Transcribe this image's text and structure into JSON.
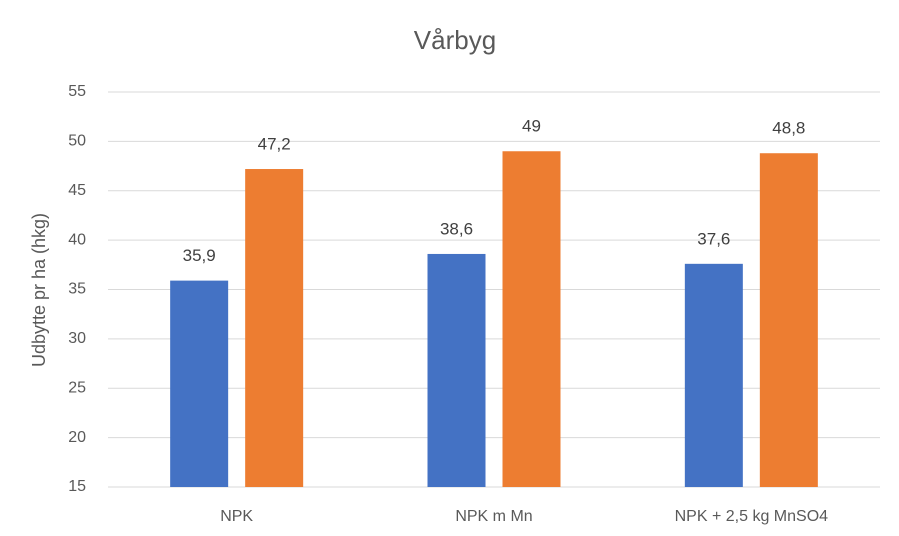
{
  "chart_data": {
    "type": "bar",
    "title": "Vårbyg",
    "y_label": "Udbytte pr ha (hkg)",
    "categories": [
      "NPK",
      "NPK m Mn",
      "NPK + 2,5 kg MnSO4"
    ],
    "series": [
      {
        "color": "#4472c4",
        "values": [
          35.9,
          38.6,
          37.6
        ],
        "value_labels": [
          "35,9",
          "38,6",
          "37,6"
        ]
      },
      {
        "color": "#ed7d31",
        "values": [
          47.2,
          49,
          48.8
        ],
        "value_labels": [
          "47,2",
          "49",
          "48,8"
        ]
      }
    ],
    "ylim": [
      15,
      55
    ],
    "yticks": [
      15,
      20,
      25,
      30,
      35,
      40,
      45,
      50,
      55
    ],
    "grid": true
  }
}
